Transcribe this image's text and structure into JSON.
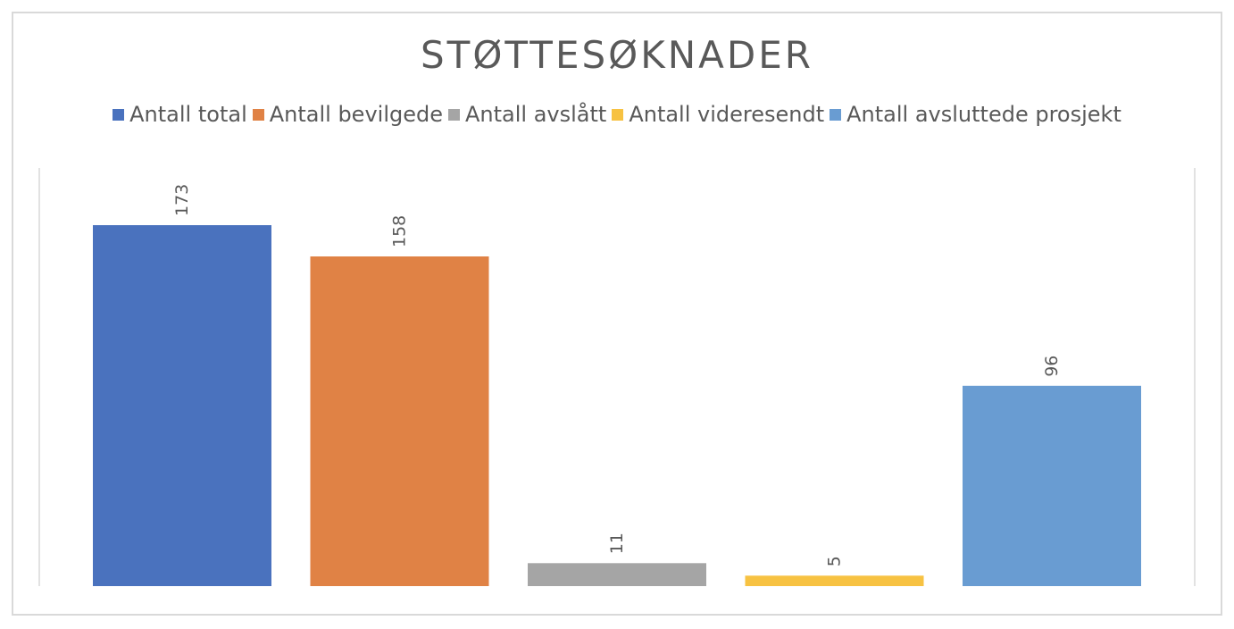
{
  "chart_data": {
    "type": "bar",
    "title": "STØTTESØKNADER",
    "xlabel": "",
    "ylabel": "",
    "ylim": [
      0,
      185
    ],
    "grid": false,
    "legend_position": "top",
    "series": [
      {
        "name": "Antall total",
        "value": 173,
        "color": "#4a72be"
      },
      {
        "name": "Antall bevilgede",
        "value": 158,
        "color": "#e08245"
      },
      {
        "name": "Antall avslått",
        "value": 11,
        "color": "#a5a5a5"
      },
      {
        "name": "Antall videresendt",
        "value": 5,
        "color": "#f7c242"
      },
      {
        "name": "Antall avsluttede prosjekt",
        "value": 96,
        "color": "#699cd2"
      }
    ]
  }
}
